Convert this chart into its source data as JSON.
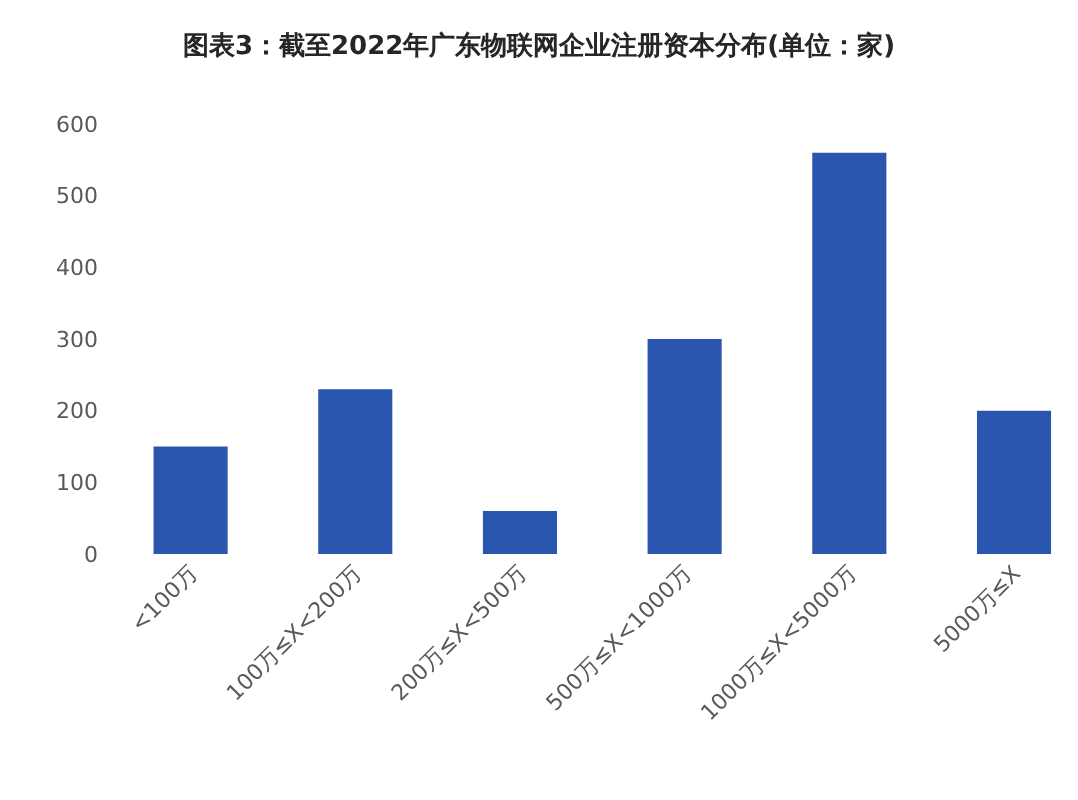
{
  "chart_data": {
    "type": "bar",
    "title": "图表3：截至2022年广东物联网企业注册资本分布(单位：家)",
    "categories": [
      "<100万",
      "100万≤X<200万",
      "200万≤X<500万",
      "500万≤X<1000万",
      "1000万≤X<5000万",
      "5000万≤X"
    ],
    "values": [
      150,
      230,
      60,
      300,
      560,
      200
    ],
    "color": "#2a56b0",
    "ylim": [
      0,
      600
    ],
    "yticks": [
      0,
      100,
      200,
      300,
      400,
      500,
      600
    ]
  }
}
